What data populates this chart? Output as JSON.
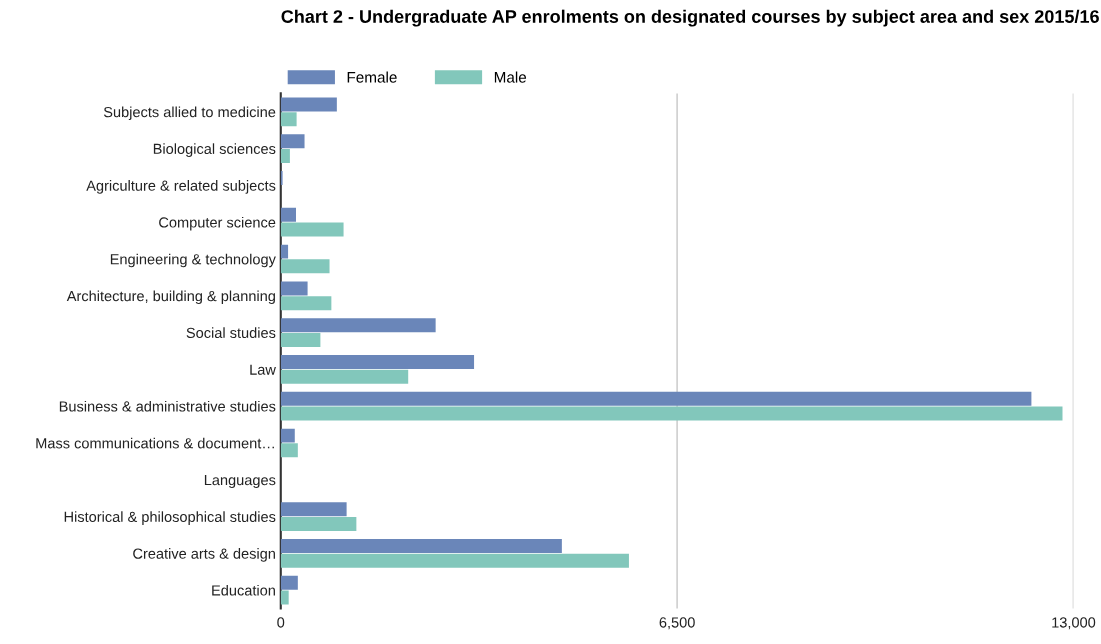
{
  "chart_data": {
    "type": "bar",
    "orientation": "horizontal",
    "title": "Chart 2 - Undergraduate AP enrolments on designated courses by subject area and sex 2015/16",
    "categories": [
      "Subjects allied to medicine",
      "Biological sciences",
      "Agriculture & related subjects",
      "Computer science",
      "Engineering & technology",
      "Architecture, building & planning",
      "Social studies",
      "Law",
      "Business & administrative studies",
      "Mass communications & document…",
      "Languages",
      "Historical & philosophical studies",
      "Creative arts & design",
      "Education"
    ],
    "series": [
      {
        "name": "Female",
        "color": "#6a86b9",
        "values": [
          920,
          390,
          30,
          250,
          120,
          440,
          2540,
          3170,
          12310,
          230,
          null,
          1080,
          4610,
          280
        ]
      },
      {
        "name": "Male",
        "color": "#82c7bb",
        "values": [
          260,
          150,
          null,
          1030,
          800,
          830,
          650,
          2090,
          12820,
          280,
          null,
          1240,
          5710,
          130
        ]
      }
    ],
    "xlim": [
      0,
      13000
    ],
    "xticks": [
      0,
      {
        "value": 6500,
        "label": "6,500"
      },
      {
        "value": 13000,
        "label": "13,000"
      }
    ],
    "grid": "x",
    "legend": "top left"
  }
}
